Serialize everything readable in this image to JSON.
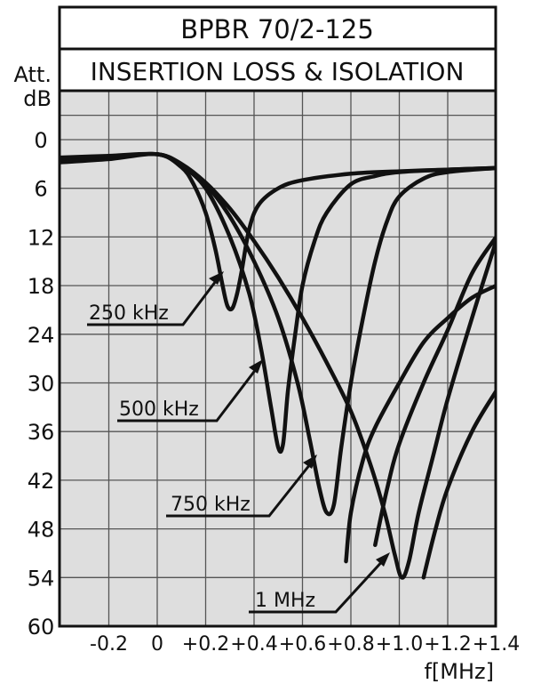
{
  "chart_data": {
    "type": "line",
    "title": "BPBR 70/2-125",
    "subtitle": "INSERTION LOSS & ISOLATION",
    "ylabel_line1": "Att.",
    "ylabel_line2": "dB",
    "xlabel": "f[MHz]",
    "xlim": [
      -0.4,
      1.4
    ],
    "ylim": [
      0,
      60
    ],
    "y_inverted": true,
    "grid": true,
    "x_ticks": [
      {
        "value": -0.2,
        "label": "-0.2"
      },
      {
        "value": 0,
        "label": "0"
      },
      {
        "value": 0.2,
        "label": "+0.2"
      },
      {
        "value": 0.4,
        "label": "+0.4"
      },
      {
        "value": 0.6,
        "label": "+0.6"
      },
      {
        "value": 0.8,
        "label": "+0.8"
      },
      {
        "value": 1.0,
        "label": "+1.0"
      },
      {
        "value": 1.2,
        "label": "+1.2"
      },
      {
        "value": 1.4,
        "label": "+1.4"
      }
    ],
    "y_ticks": [
      {
        "value": 0,
        "label": "0"
      },
      {
        "value": 6,
        "label": "6"
      },
      {
        "value": 12,
        "label": "12"
      },
      {
        "value": 18,
        "label": "18"
      },
      {
        "value": 24,
        "label": "24"
      },
      {
        "value": 30,
        "label": "30"
      },
      {
        "value": 36,
        "label": "36"
      },
      {
        "value": 42,
        "label": "42"
      },
      {
        "value": 48,
        "label": "48"
      },
      {
        "value": 54,
        "label": "54"
      },
      {
        "value": 60,
        "label": "60"
      }
    ],
    "series": [
      {
        "name": "250 kHz",
        "points": [
          [
            -0.4,
            2.8
          ],
          [
            -0.2,
            2.4
          ],
          [
            0,
            1.8
          ],
          [
            0.1,
            3.4
          ],
          [
            0.15,
            5.5
          ],
          [
            0.2,
            9
          ],
          [
            0.24,
            13.5
          ],
          [
            0.27,
            18
          ],
          [
            0.29,
            20.5
          ],
          [
            0.31,
            20.8
          ],
          [
            0.33,
            19
          ],
          [
            0.35,
            16
          ],
          [
            0.38,
            11
          ],
          [
            0.42,
            8
          ],
          [
            0.5,
            6
          ],
          [
            0.6,
            5
          ],
          [
            0.8,
            4.2
          ],
          [
            1.0,
            3.9
          ],
          [
            1.2,
            3.7
          ],
          [
            1.4,
            3.5
          ]
        ]
      },
      {
        "name": "500 kHz",
        "points": [
          [
            -0.4,
            2.6
          ],
          [
            -0.2,
            2.2
          ],
          [
            0,
            1.8
          ],
          [
            0.1,
            3.2
          ],
          [
            0.2,
            6
          ],
          [
            0.3,
            12
          ],
          [
            0.38,
            19
          ],
          [
            0.43,
            26
          ],
          [
            0.47,
            33
          ],
          [
            0.5,
            38
          ],
          [
            0.52,
            37.5
          ],
          [
            0.54,
            31
          ],
          [
            0.57,
            24
          ],
          [
            0.6,
            18
          ],
          [
            0.65,
            12.5
          ],
          [
            0.7,
            9
          ],
          [
            0.8,
            5.5
          ],
          [
            0.9,
            4.5
          ],
          [
            1.0,
            4
          ],
          [
            1.2,
            3.7
          ],
          [
            1.4,
            3.5
          ]
        ]
      },
      {
        "name": "750 kHz",
        "points": [
          [
            -0.4,
            2.4
          ],
          [
            -0.2,
            2.1
          ],
          [
            0,
            1.8
          ],
          [
            0.1,
            3.1
          ],
          [
            0.2,
            5.5
          ],
          [
            0.3,
            9.5
          ],
          [
            0.4,
            15
          ],
          [
            0.5,
            22
          ],
          [
            0.58,
            30
          ],
          [
            0.63,
            37
          ],
          [
            0.67,
            43
          ],
          [
            0.7,
            46
          ],
          [
            0.73,
            45
          ],
          [
            0.76,
            38
          ],
          [
            0.8,
            30
          ],
          [
            0.85,
            22
          ],
          [
            0.9,
            15
          ],
          [
            0.95,
            10
          ],
          [
            1.0,
            7
          ],
          [
            1.1,
            4.8
          ],
          [
            1.2,
            4
          ],
          [
            1.4,
            3.5
          ]
        ]
      },
      {
        "name": "1 MHz",
        "points": [
          [
            -0.4,
            2.2
          ],
          [
            -0.2,
            2.0
          ],
          [
            0,
            1.8
          ],
          [
            0.1,
            3
          ],
          [
            0.2,
            5.3
          ],
          [
            0.3,
            8.5
          ],
          [
            0.4,
            12.5
          ],
          [
            0.5,
            17
          ],
          [
            0.6,
            22
          ],
          [
            0.7,
            27.5
          ],
          [
            0.8,
            33.5
          ],
          [
            0.88,
            40
          ],
          [
            0.94,
            46
          ],
          [
            0.98,
            51
          ],
          [
            1.01,
            54
          ],
          [
            1.04,
            52
          ],
          [
            1.08,
            46
          ],
          [
            1.14,
            39
          ],
          [
            1.2,
            32
          ],
          [
            1.3,
            22
          ],
          [
            1.4,
            12.5
          ]
        ]
      },
      {
        "name": "",
        "points": [
          [
            0.9,
            50
          ],
          [
            0.95,
            43
          ],
          [
            1.0,
            37.5
          ],
          [
            1.1,
            30
          ],
          [
            1.2,
            23.5
          ],
          [
            1.3,
            16.5
          ],
          [
            1.4,
            12
          ]
        ]
      },
      {
        "name": "",
        "points": [
          [
            0.78,
            52
          ],
          [
            0.8,
            46
          ],
          [
            0.85,
            39.5
          ],
          [
            0.9,
            35.5
          ],
          [
            1.0,
            30
          ],
          [
            1.1,
            25
          ],
          [
            1.2,
            22
          ],
          [
            1.3,
            19.5
          ],
          [
            1.4,
            18
          ]
        ]
      },
      {
        "name": "",
        "points": [
          [
            1.1,
            54
          ],
          [
            1.15,
            48
          ],
          [
            1.2,
            43
          ],
          [
            1.3,
            36
          ],
          [
            1.4,
            31
          ]
        ]
      }
    ],
    "annotations": [
      {
        "label": "250 kHz",
        "series": "250 kHz"
      },
      {
        "label": "500 kHz",
        "series": "500 kHz"
      },
      {
        "label": "750 kHz",
        "series": "750 kHz"
      },
      {
        "label": "1 MHz",
        "series": "1 MHz"
      }
    ],
    "colors": {
      "plot_background": "#dedede",
      "grid": "#555555",
      "curve": "#111111",
      "frame": "#111111"
    }
  }
}
